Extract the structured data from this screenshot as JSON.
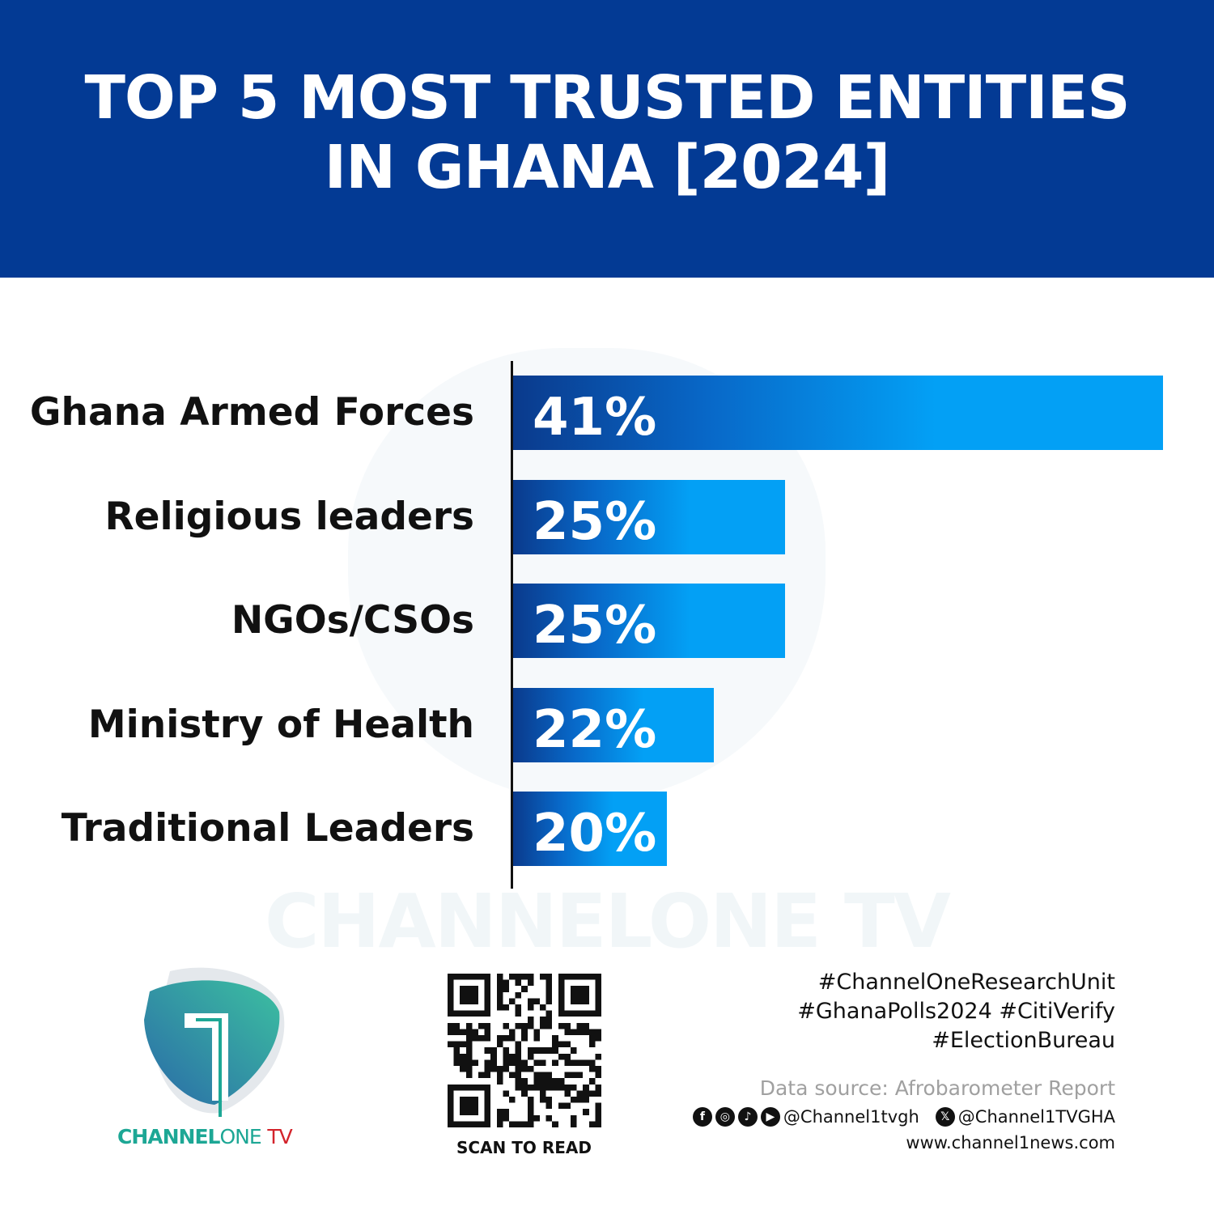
{
  "header": {
    "title_line1": "TOP 5 MOST TRUSTED ENTITIES",
    "title_line2": "IN GHANA [2024]"
  },
  "chart_data": {
    "type": "bar",
    "orientation": "horizontal",
    "title": "TOP 5 MOST TRUSTED ENTITIES IN GHANA [2024]",
    "categories": [
      "Ghana Armed Forces",
      "Religious leaders",
      "NGOs/CSOs",
      "Ministry of Health",
      "Traditional Leaders"
    ],
    "values": [
      41,
      25,
      25,
      22,
      20
    ],
    "value_labels": [
      "41%",
      "25%",
      "25%",
      "22%",
      "20%"
    ],
    "unit": "%",
    "xlim": [
      13.5,
      41
    ],
    "grid": false,
    "colors": {
      "bar_start": "#0a3a8c",
      "bar_end": "#03a0f5"
    }
  },
  "colors": {
    "header": "#033a94",
    "brand_teal": "#1da795",
    "brand_red": "#d3232b"
  },
  "watermark": "CHANNELONE TV",
  "logo": {
    "text_bold": "CHANNEL",
    "text_light": "ONE",
    "text_tv": "TV"
  },
  "qr": {
    "caption": "SCAN TO READ"
  },
  "footer": {
    "tags": [
      "#ChannelOneResearchUnit",
      "#GhanaPolls2024 #CitiVerify",
      "#ElectionBureau"
    ],
    "source": "Data source: Afrobarometer Report",
    "social_icons": [
      "facebook-icon",
      "instagram-icon",
      "tiktok-icon",
      "youtube-icon"
    ],
    "handle_social": "@Channel1tvgh",
    "handle_x": "@Channel1TVGHA",
    "website": "www.channel1news.com"
  }
}
